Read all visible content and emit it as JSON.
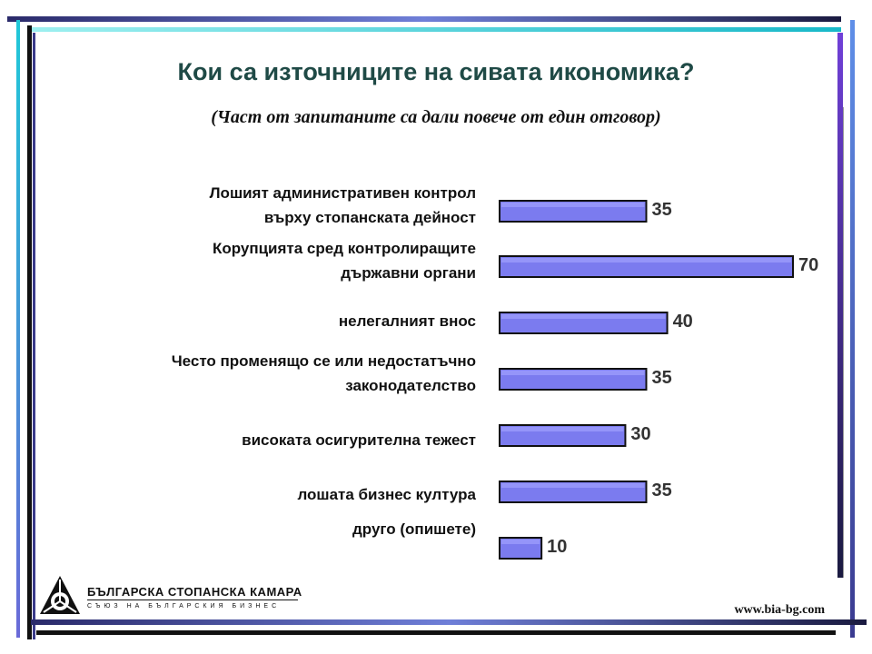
{
  "chart_data": {
    "type": "bar",
    "orientation": "horizontal",
    "title": "Кои са източниците на сивата икономика?",
    "subtitle": "(Част от запитаните са дали повече от един отговор)",
    "categories": [
      [
        "Лошият административен контрол",
        "върху стопанската дейност"
      ],
      [
        "Корупцията сред контролиращите",
        "държавни органи"
      ],
      [
        "нелегалният внос"
      ],
      [
        "Често променящо се или недостатъчно",
        "законодателство"
      ],
      [
        "високата осигурителна тежест"
      ],
      [
        "лошата бизнес култура"
      ],
      [
        "друго (опишете)"
      ]
    ],
    "values": [
      35,
      70,
      40,
      35,
      30,
      35,
      10
    ],
    "xlim": [
      0,
      70
    ],
    "grid": false,
    "legend": "none",
    "bar_color": "#7b7bef"
  },
  "logo": {
    "line1": "БЪЛГАРСКА СТОПАНСКА КАМАРА",
    "line2": "СЪЮЗ НА БЪЛГАРСКИЯ БИЗНЕС",
    "icon": "bia-triangle-logo-icon"
  },
  "footer": {
    "url": "www.bia-bg.com"
  }
}
